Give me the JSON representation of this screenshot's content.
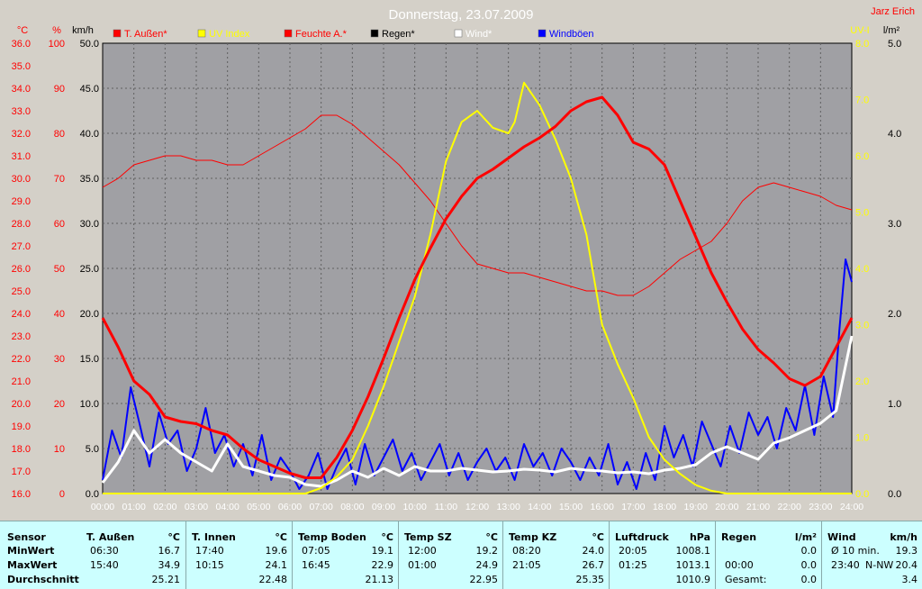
{
  "header": {
    "title": "Donnerstag, 23.07.2009",
    "author": "Jarz Erich",
    "left_units": [
      "°C",
      "%",
      "km/h"
    ],
    "right_units": [
      "UV-I",
      "l/m²"
    ]
  },
  "legend": [
    {
      "label": "T. Außen*",
      "color": "#ff0000"
    },
    {
      "label": "UV Index",
      "color": "#ffff00"
    },
    {
      "label": "Feuchte A.*",
      "color": "#ff0000"
    },
    {
      "label": "Regen*",
      "color": "#000000"
    },
    {
      "label": "Wind*",
      "color": "#ffffff"
    },
    {
      "label": "Windböen",
      "color": "#0000ff"
    }
  ],
  "colors": {
    "plot_bg": "#a0a0a4",
    "temp": "#ff0000",
    "uv": "#ffff00",
    "humidity": "#ff0000",
    "wind": "#ffffff",
    "gusts": "#0000ff",
    "axis_red": "#ff0000",
    "axis_uv": "#ffff00"
  },
  "chart_data": {
    "type": "line",
    "title": "Donnerstag, 23.07.2009",
    "x_ticks": [
      "00:00",
      "01:00",
      "02:00",
      "03:00",
      "04:00",
      "05:00",
      "06:00",
      "07:00",
      "08:00",
      "09:00",
      "10:00",
      "11:00",
      "12:00",
      "13:00",
      "14:00",
      "15:00",
      "16:00",
      "17:00",
      "18:00",
      "19:00",
      "20:00",
      "21:00",
      "22:00",
      "23:00",
      "24:00"
    ],
    "axes": {
      "temp_c": {
        "min": 16.0,
        "max": 36.0,
        "ticks": [
          "16.0",
          "17.0",
          "18.0",
          "19.0",
          "20.0",
          "21.0",
          "22.0",
          "23.0",
          "24.0",
          "25.0",
          "26.0",
          "27.0",
          "28.0",
          "29.0",
          "30.0",
          "31.0",
          "32.0",
          "33.0",
          "34.0",
          "35.0",
          "36.0"
        ]
      },
      "humidity_pct": {
        "min": 0,
        "max": 100,
        "ticks": [
          "0",
          "10",
          "20",
          "30",
          "40",
          "50",
          "60",
          "70",
          "80",
          "90",
          "100"
        ]
      },
      "wind_kmh": {
        "min": 0,
        "max": 50,
        "ticks": [
          "0.0",
          "5.0",
          "10.0",
          "15.0",
          "20.0",
          "25.0",
          "30.0",
          "35.0",
          "40.0",
          "45.0",
          "50.0"
        ]
      },
      "uv_index": {
        "min": 0,
        "max": 8,
        "ticks": [
          "0.0",
          "1.0",
          "2.0",
          "3.0",
          "4.0",
          "5.0",
          "6.0",
          "7.0",
          "8.0"
        ]
      },
      "rain_lm2": {
        "min": 0,
        "max": 5,
        "ticks": [
          "0.0",
          "1.0",
          "2.0",
          "3.0",
          "4.0",
          "5.0"
        ]
      }
    },
    "grid": true,
    "series": [
      {
        "name": "T. Außen*",
        "axis": "temp_c",
        "x": [
          0,
          0.5,
          1,
          1.5,
          2,
          2.5,
          3,
          3.5,
          4,
          4.5,
          5,
          5.5,
          6,
          6.5,
          7,
          7.5,
          8,
          8.5,
          9,
          9.5,
          10,
          10.5,
          11,
          11.5,
          12,
          12.5,
          13,
          13.5,
          14,
          14.5,
          15,
          15.5,
          16,
          16.5,
          17,
          17.5,
          18,
          18.5,
          19,
          19.5,
          20,
          20.5,
          21,
          21.5,
          22,
          22.5,
          23,
          23.5,
          24
        ],
        "y": [
          23.8,
          22.5,
          21.0,
          20.4,
          19.4,
          19.2,
          19.1,
          18.8,
          18.6,
          18.0,
          17.5,
          17.2,
          16.9,
          16.7,
          16.7,
          17.6,
          18.8,
          20.3,
          22.0,
          23.8,
          25.5,
          26.9,
          28.2,
          29.2,
          30.0,
          30.4,
          30.9,
          31.4,
          31.8,
          32.3,
          33.0,
          33.4,
          33.6,
          32.8,
          31.6,
          31.3,
          30.6,
          29.0,
          27.4,
          25.8,
          24.5,
          23.3,
          22.4,
          21.8,
          21.1,
          20.8,
          21.2,
          22.5,
          23.8
        ]
      },
      {
        "name": "UV Index",
        "axis": "uv_index",
        "x": [
          0,
          6.5,
          7,
          7.5,
          8,
          8.5,
          9,
          9.5,
          10,
          10.5,
          11,
          11.5,
          12,
          12.5,
          13,
          13.2,
          13.5,
          14,
          14.5,
          15,
          15.5,
          16,
          16.5,
          17,
          17.5,
          18,
          18.5,
          19,
          19.5,
          20,
          24
        ],
        "y": [
          0,
          0,
          0.1,
          0.3,
          0.6,
          1.2,
          1.9,
          2.7,
          3.5,
          4.6,
          5.9,
          6.6,
          6.8,
          6.5,
          6.4,
          6.6,
          7.3,
          6.9,
          6.3,
          5.6,
          4.6,
          3.0,
          2.3,
          1.7,
          1.0,
          0.6,
          0.35,
          0.15,
          0.05,
          0,
          0
        ]
      },
      {
        "name": "Feuchte A.*",
        "axis": "humidity_pct",
        "x": [
          0,
          0.5,
          1,
          1.5,
          2,
          2.5,
          3,
          3.5,
          4,
          4.5,
          5,
          5.5,
          6,
          6.5,
          7,
          7.5,
          8,
          8.5,
          9,
          9.5,
          10,
          10.5,
          11,
          11.5,
          12,
          12.5,
          13,
          13.5,
          14,
          14.5,
          15,
          15.5,
          16,
          16.5,
          17,
          17.5,
          18,
          18.5,
          19,
          19.5,
          20,
          20.5,
          21,
          21.5,
          22,
          22.5,
          23,
          23.5,
          24
        ],
        "y": [
          68,
          70,
          73,
          74,
          75,
          75,
          74,
          74,
          73,
          73,
          75,
          77,
          79,
          81,
          84,
          84,
          82,
          79,
          76,
          73,
          69,
          65,
          60,
          55,
          51,
          50,
          49,
          49,
          48,
          47,
          46,
          45,
          45,
          44,
          44,
          46,
          49,
          52,
          54,
          56,
          60,
          65,
          68,
          69,
          68,
          67,
          66,
          64,
          63
        ]
      },
      {
        "name": "Wind*",
        "axis": "wind_kmh",
        "x": [
          0,
          0.5,
          1,
          1.5,
          2,
          2.5,
          3,
          3.5,
          4,
          4.5,
          5,
          5.5,
          6,
          6.5,
          7,
          7.5,
          8,
          8.5,
          9,
          9.5,
          10,
          10.5,
          11,
          11.5,
          12,
          12.5,
          13,
          13.5,
          14,
          14.5,
          15,
          15.5,
          16,
          16.5,
          17,
          17.5,
          18,
          18.5,
          19,
          19.5,
          20,
          20.5,
          21,
          21.5,
          22,
          22.5,
          23,
          23.5,
          24
        ],
        "y": [
          1.2,
          3.5,
          7.0,
          4.5,
          6.0,
          4.5,
          3.5,
          2.5,
          5.5,
          3.0,
          2.5,
          2.0,
          1.8,
          1.0,
          0.8,
          1.5,
          2.5,
          1.8,
          2.8,
          2.0,
          3.0,
          2.5,
          2.5,
          2.8,
          2.6,
          2.4,
          2.5,
          2.7,
          2.6,
          2.4,
          2.8,
          2.6,
          2.5,
          2.3,
          2.4,
          2.2,
          2.6,
          2.8,
          3.2,
          4.5,
          5.2,
          4.5,
          3.8,
          5.6,
          6.2,
          7.0,
          7.8,
          9.2,
          17.5
        ]
      },
      {
        "name": "Windböen",
        "axis": "wind_kmh",
        "x": [
          0,
          0.3,
          0.6,
          0.9,
          1.2,
          1.5,
          1.8,
          2.1,
          2.4,
          2.7,
          3.0,
          3.3,
          3.6,
          3.9,
          4.2,
          4.5,
          4.8,
          5.1,
          5.4,
          5.7,
          6.0,
          6.3,
          6.6,
          6.9,
          7.2,
          7.5,
          7.8,
          8.1,
          8.4,
          8.7,
          9.0,
          9.3,
          9.6,
          9.9,
          10.2,
          10.5,
          10.8,
          11.1,
          11.4,
          11.7,
          12.0,
          12.3,
          12.6,
          12.9,
          13.2,
          13.5,
          13.8,
          14.1,
          14.4,
          14.7,
          15.0,
          15.3,
          15.6,
          15.9,
          16.2,
          16.5,
          16.8,
          17.1,
          17.4,
          17.7,
          18.0,
          18.3,
          18.6,
          18.9,
          19.2,
          19.5,
          19.8,
          20.1,
          20.4,
          20.7,
          21.0,
          21.3,
          21.6,
          21.9,
          22.2,
          22.5,
          22.8,
          23.1,
          23.4,
          23.6,
          23.8,
          24.0
        ],
        "y": [
          1.5,
          7.0,
          4.0,
          11.8,
          7.5,
          3.0,
          9.0,
          5.5,
          7.0,
          2.5,
          5.0,
          9.5,
          4.5,
          6.5,
          3.0,
          5.5,
          2.0,
          6.5,
          1.5,
          4.0,
          2.5,
          0.5,
          2.0,
          4.5,
          0.5,
          3.0,
          5.0,
          1.0,
          5.5,
          2.0,
          4.0,
          6.0,
          2.5,
          4.5,
          1.5,
          3.5,
          5.5,
          2.0,
          4.5,
          1.5,
          3.5,
          5.0,
          2.5,
          4.0,
          1.5,
          5.5,
          3.0,
          4.5,
          2.0,
          5.0,
          3.5,
          1.5,
          4.0,
          2.0,
          5.5,
          1.0,
          3.5,
          0.5,
          4.5,
          1.5,
          7.5,
          4.0,
          6.5,
          3.0,
          8.0,
          5.5,
          3.0,
          7.5,
          4.5,
          9.0,
          6.5,
          8.5,
          5.0,
          9.5,
          7.0,
          12.0,
          6.5,
          13.0,
          8.5,
          18.0,
          26.0,
          23.5
        ]
      }
    ]
  },
  "table": {
    "row_labels": {
      "header": "Sensor",
      "min": "MinWert",
      "max": "MaxWert",
      "avg": "Durchschnitt"
    },
    "columns": [
      {
        "name": "T. Außen",
        "unit": "°C",
        "min_time": "06:30",
        "min_val": "16.7",
        "max_time": "15:40",
        "max_val": "34.9",
        "avg": "25.21"
      },
      {
        "name": "T. Innen",
        "unit": "°C",
        "min_time": "17:40",
        "min_val": "19.6",
        "max_time": "10:15",
        "max_val": "24.1",
        "avg": "22.48"
      },
      {
        "name": "Temp Boden",
        "unit": "°C",
        "min_time": "07:05",
        "min_val": "19.1",
        "max_time": "16:45",
        "max_val": "22.9",
        "avg": "21.13"
      },
      {
        "name": "Temp SZ",
        "unit": "°C",
        "min_time": "12:00",
        "min_val": "19.2",
        "max_time": "01:00",
        "max_val": "24.9",
        "avg": "22.95"
      },
      {
        "name": "Temp KZ",
        "unit": "°C",
        "min_time": "08:20",
        "min_val": "24.0",
        "max_time": "21:05",
        "max_val": "26.7",
        "avg": "25.35"
      },
      {
        "name": "Luftdruck",
        "unit": "hPa",
        "min_time": "20:05",
        "min_val": "1008.1",
        "max_time": "01:25",
        "max_val": "1013.1",
        "avg": "1010.9"
      },
      {
        "name": "Regen",
        "unit": "l/m²",
        "min_time": "",
        "min_val": "0.0",
        "max_time": "00:00",
        "max_val": "0.0",
        "avg_label": "Gesamt:",
        "avg": "0.0"
      },
      {
        "name": "Wind",
        "unit": "km/h",
        "min_time": "Ø 10 min.",
        "min_val": "19.3",
        "max_time": "23:40",
        "max_dir": "N-NW",
        "max_val": "20.4",
        "avg": "3.4"
      }
    ]
  }
}
